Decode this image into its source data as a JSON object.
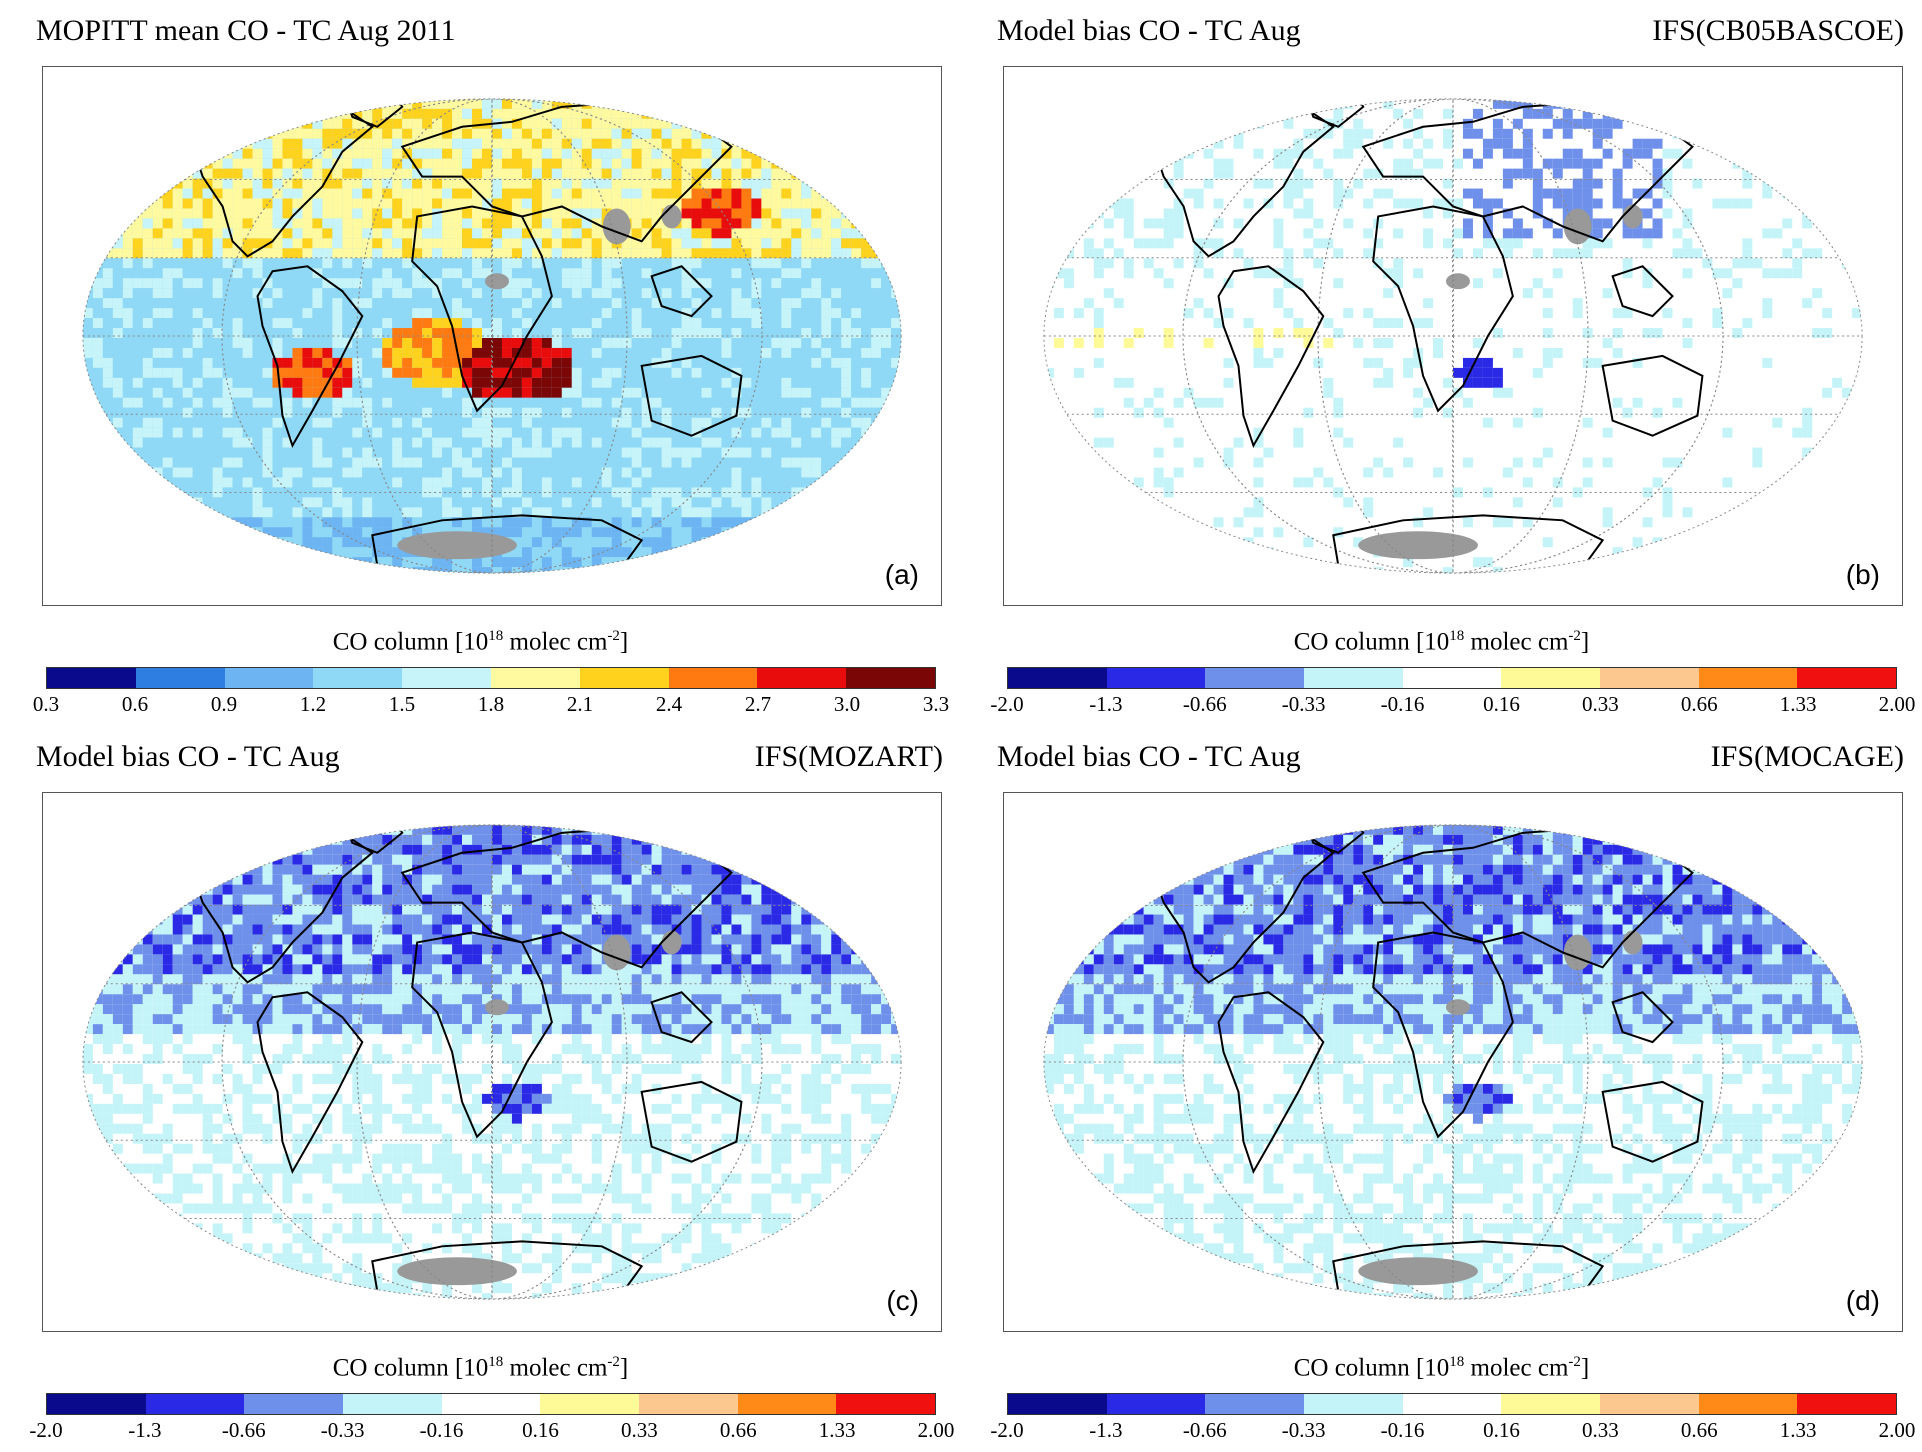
{
  "panels": [
    {
      "title": "MOPITT mean CO - TC Aug     2011",
      "model": "",
      "letter": "(a)",
      "kind": "mean",
      "colorbar": {
        "label_main": "CO column [10",
        "label_sup": "18",
        "label_mid": " molec cm",
        "label_sup2": "-2",
        "label_end": "]",
        "ticks": [
          "0.3",
          "0.6",
          "0.9",
          "1.2",
          "1.5",
          "1.8",
          "2.1",
          "2.4",
          "2.7",
          "3.0",
          "3.3"
        ],
        "colors": [
          "#0a0a8c",
          "#2e7de0",
          "#6cb4f2",
          "#8fd8f6",
          "#c6f4f8",
          "#fffaa0",
          "#ffd21e",
          "#ff7a10",
          "#e80c0c",
          "#7a0606"
        ]
      }
    },
    {
      "title": "Model  bias CO - TC Aug",
      "model": "IFS(CB05BASCOE)",
      "letter": "(b)",
      "kind": "bias-weak",
      "colorbar": {
        "label_main": "CO column [10",
        "label_sup": "18",
        "label_mid": " molec cm",
        "label_sup2": "-2",
        "label_end": "]",
        "ticks": [
          "-2.0",
          "-1.3",
          "-0.66",
          "-0.33",
          "-0.16",
          "0.16",
          "0.33",
          "0.66",
          "1.33",
          "2.00"
        ],
        "colors": [
          "#0a0a8c",
          "#2a2ae6",
          "#6e90ea",
          "#c4f4f8",
          "#ffffff",
          "#fffa98",
          "#fcc890",
          "#ff8a18",
          "#f01010"
        ]
      }
    },
    {
      "title": "Model  bias CO - TC Aug",
      "model": "IFS(MOZART)",
      "letter": "(c)",
      "kind": "bias-strong",
      "colorbar": {
        "label_main": "CO column [10",
        "label_sup": "18",
        "label_mid": " molec cm",
        "label_sup2": "-2",
        "label_end": "]",
        "ticks": [
          "-2.0",
          "-1.3",
          "-0.66",
          "-0.33",
          "-0.16",
          "0.16",
          "0.33",
          "0.66",
          "1.33",
          "2.00"
        ],
        "colors": [
          "#0a0a8c",
          "#2a2ae6",
          "#6e90ea",
          "#c4f4f8",
          "#ffffff",
          "#fffa98",
          "#fcc890",
          "#ff8a18",
          "#f01010"
        ]
      }
    },
    {
      "title": "Model  bias CO - TC Aug",
      "model": "IFS(MOCAGE)",
      "letter": "(d)",
      "kind": "bias-strong",
      "colorbar": {
        "label_main": "CO column [10",
        "label_sup": "18",
        "label_mid": " molec cm",
        "label_sup2": "-2",
        "label_end": "]",
        "ticks": [
          "-2.0",
          "-1.3",
          "-0.66",
          "-0.33",
          "-0.16",
          "0.16",
          "0.33",
          "0.66",
          "1.33",
          "2.00"
        ],
        "colors": [
          "#0a0a8c",
          "#2a2ae6",
          "#6e90ea",
          "#c4f4f8",
          "#ffffff",
          "#fffa98",
          "#fcc890",
          "#ff8a18",
          "#f01010"
        ]
      }
    }
  ]
}
